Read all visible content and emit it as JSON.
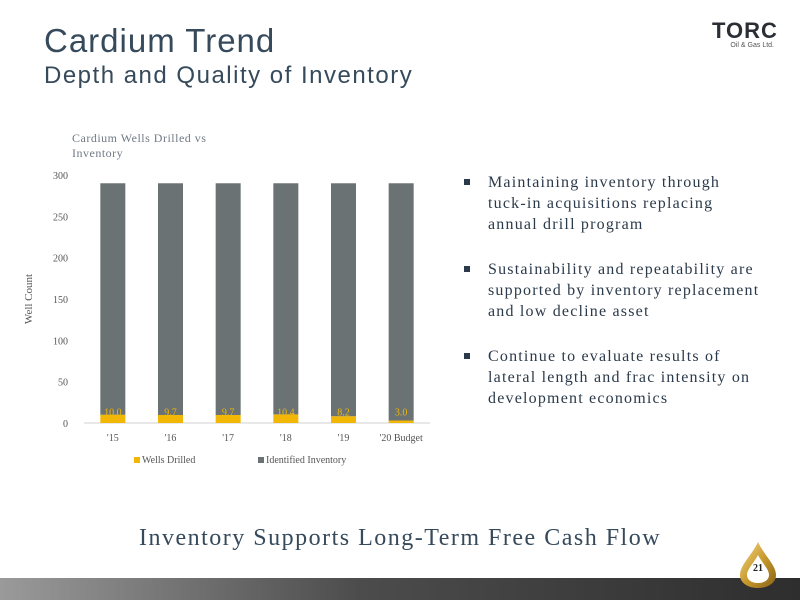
{
  "slide": {
    "title": "Cardium Trend",
    "subtitle": "Depth and Quality of Inventory",
    "logo_text": "TORC",
    "logo_subtext": "Oil & Gas Ltd.",
    "page_number": "21",
    "tagline": "Inventory Supports Long-Term Free Cash Flow"
  },
  "bullets": [
    "Maintaining inventory through tuck-in acquisitions replacing annual drill program",
    "Sustainability and repeatability are supported by inventory replacement and low decline asset",
    "Continue to evaluate results of lateral length and frac intensity on development economics"
  ],
  "chart_data": {
    "type": "bar",
    "stacked": true,
    "title": "Cardium Wells Drilled vs Inventory",
    "ylabel": "Well Count",
    "xlabel": "",
    "ylim": [
      0,
      300
    ],
    "yticks": [
      0,
      50,
      100,
      150,
      200,
      250,
      300
    ],
    "categories": [
      "'15",
      "'16",
      "'17",
      "'18",
      "'19",
      "'20 Budget"
    ],
    "series": [
      {
        "name": "Wells Drilled",
        "color": "#f2b705",
        "values": [
          10.0,
          9.7,
          9.7,
          10.4,
          8.2,
          3.0
        ]
      },
      {
        "name": "Identified Inventory",
        "color": "#6b7273",
        "values": [
          280.0,
          280.3,
          280.3,
          279.6,
          281.8,
          287.0
        ]
      }
    ],
    "data_labels": [
      "10.0",
      "9.7",
      "9.7",
      "10.4",
      "8.2",
      "3.0"
    ],
    "grid": false,
    "legend": "bottom"
  }
}
